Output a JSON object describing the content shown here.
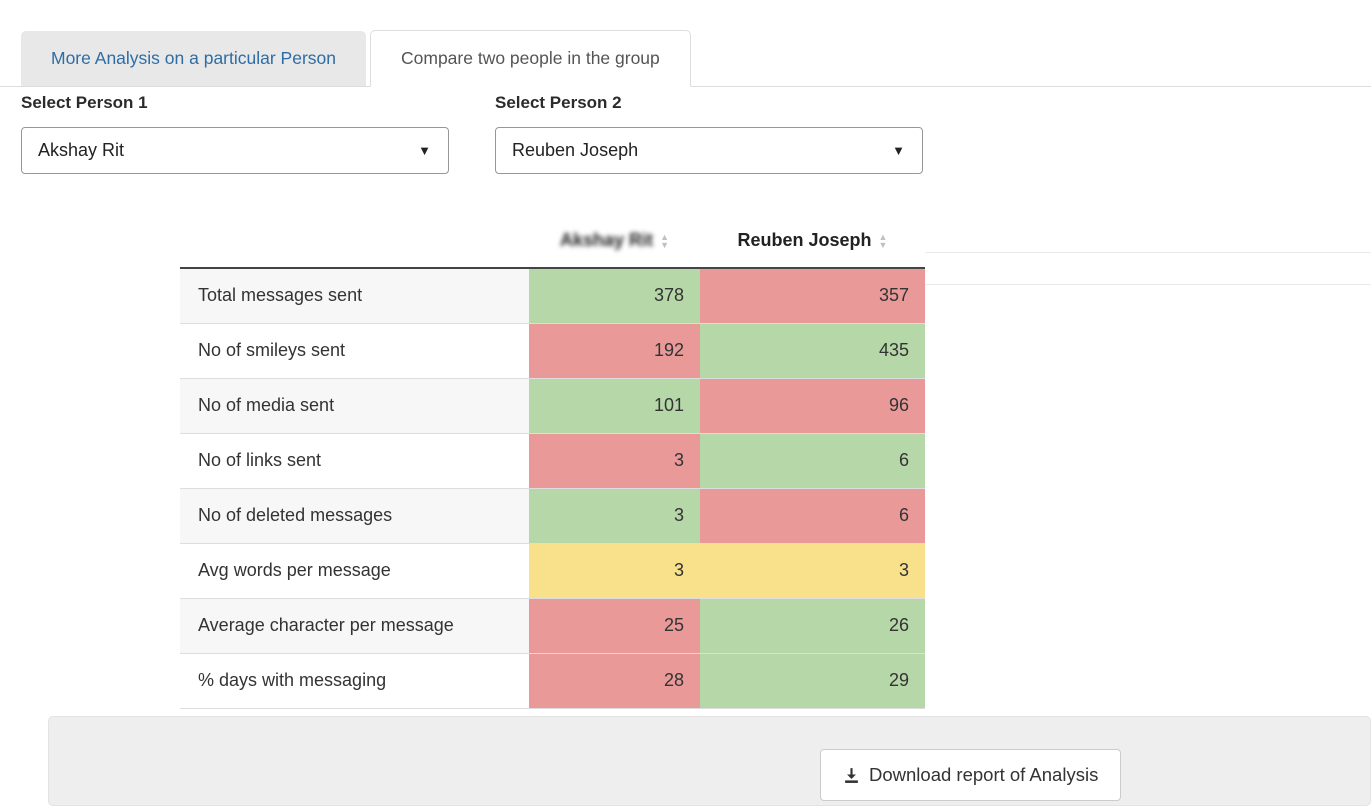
{
  "tabs": [
    {
      "label": "More Analysis on a particular Person",
      "active": false
    },
    {
      "label": "Compare two people in the group",
      "active": true
    }
  ],
  "person1_select": {
    "label": "Select Person 1",
    "value": "Akshay Rit"
  },
  "person2_select": {
    "label": "Select Person 2",
    "value": "Reuben Joseph"
  },
  "table": {
    "person1_header": "Akshay Rit",
    "person2_header": "Reuben Joseph",
    "rows": [
      {
        "metric": "Total messages sent",
        "person1": "378",
        "person1_color": "green",
        "person2": "357",
        "person2_color": "red"
      },
      {
        "metric": "No of smileys sent",
        "person1": "192",
        "person1_color": "red",
        "person2": "435",
        "person2_color": "green"
      },
      {
        "metric": "No of media sent",
        "person1": "101",
        "person1_color": "green",
        "person2": "96",
        "person2_color": "red"
      },
      {
        "metric": "No of links sent",
        "person1": "3",
        "person1_color": "red",
        "person2": "6",
        "person2_color": "green"
      },
      {
        "metric": "No of deleted messages",
        "person1": "3",
        "person1_color": "green",
        "person2": "6",
        "person2_color": "red"
      },
      {
        "metric": "Avg words per message",
        "person1": "3",
        "person1_color": "yellow",
        "person2": "3",
        "person2_color": "yellow"
      },
      {
        "metric": "Average character per message",
        "person1": "25",
        "person1_color": "red",
        "person2": "26",
        "person2_color": "green"
      },
      {
        "metric": "% days with messaging",
        "person1": "28",
        "person1_color": "red",
        "person2": "29",
        "person2_color": "green"
      }
    ]
  },
  "footer": {
    "download_button_label": "Download report of Analysis"
  },
  "colors": {
    "green": "#b6d7a8",
    "red": "#ea9999",
    "yellow": "#f9e08a",
    "tab_link": "#2e6da4"
  }
}
